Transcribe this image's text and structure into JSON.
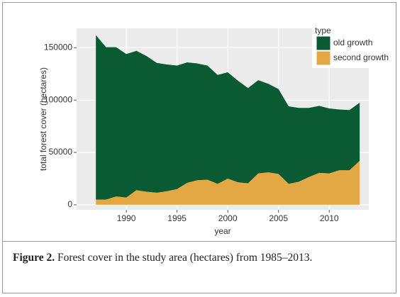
{
  "chart_data": {
    "type": "stacked-area",
    "x": [
      1987,
      1988,
      1989,
      1990,
      1991,
      1992,
      1993,
      1994,
      1995,
      1996,
      1997,
      1998,
      1999,
      2000,
      2001,
      2002,
      2003,
      2004,
      2005,
      2006,
      2007,
      2008,
      2009,
      2010,
      2011,
      2012,
      2013
    ],
    "series": [
      {
        "name": "old growth",
        "color": "#0a5a33",
        "values": [
          157000,
          145500,
          142500,
          137000,
          133000,
          129500,
          124000,
          121000,
          118000,
          115000,
          111500,
          109000,
          104000,
          101500,
          97000,
          91000,
          89000,
          84500,
          81000,
          74000,
          70500,
          66000,
          64000,
          62000,
          58000,
          57500,
          55500
        ]
      },
      {
        "name": "second growth",
        "color": "#e3a843",
        "values": [
          5000,
          5000,
          8000,
          7000,
          14000,
          12500,
          11500,
          13000,
          15000,
          21000,
          23500,
          24000,
          20000,
          25000,
          21500,
          20500,
          30000,
          31000,
          29500,
          20000,
          22000,
          26500,
          30500,
          30000,
          33000,
          33000,
          42000
        ]
      }
    ],
    "x_label": "year",
    "y_label": "total forest cover (hectares)",
    "legend_title": "type",
    "legend": "top-right",
    "xlim": [
      1985.1,
      2013.9
    ],
    "xticks": [
      1990,
      1995,
      2000,
      2005,
      2010
    ],
    "ylim": [
      -4800,
      168500
    ],
    "yticks": [
      0,
      50000,
      100000,
      150000
    ],
    "grid": true
  },
  "caption": {
    "label": "Figure 2.",
    "text": "Forest cover in the study area (hectares) from 1985–2013."
  }
}
